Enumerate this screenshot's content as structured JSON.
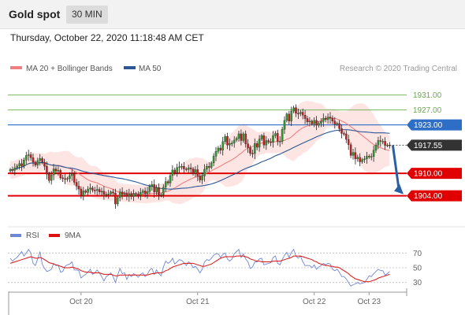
{
  "header": {
    "instrument": "Gold spot",
    "timeframe": "30 MIN"
  },
  "datetime": "Thursday, October 22, 2020 11:18:48 AM CET",
  "legend": {
    "ma20": {
      "label": "MA 20 + Bollinger Bands",
      "color": "#f08080"
    },
    "ma50": {
      "label": "MA 50",
      "color": "#2b5797"
    },
    "credit": "Research © 2020 Trading Central"
  },
  "rsi_legend": {
    "rsi": {
      "label": "RSI",
      "color": "#6f86d6"
    },
    "ma": {
      "label": "9MA",
      "color": "#d11"
    }
  },
  "colors": {
    "candle_up": "#2e9a2e",
    "candle_down": "#c61d1d",
    "green_level": "#7ab55c",
    "blue_level": "#2f6ec7",
    "red_level": "#e00000",
    "last_price": "#333333",
    "arrow": "#2b5fa3"
  },
  "chart_data": [
    {
      "type": "candlestick",
      "price_range": [
        1898,
        1936
      ],
      "levels": [
        {
          "value": "1931.00",
          "kind": "green"
        },
        {
          "value": "1927.00",
          "kind": "green"
        },
        {
          "value": "1923.00",
          "kind": "blue"
        },
        {
          "value": "1917.55",
          "kind": "last"
        },
        {
          "value": "1910.00",
          "kind": "red"
        },
        {
          "value": "1904.00",
          "kind": "red"
        }
      ],
      "x_labels": [
        "Oct 20",
        "Oct 21",
        "Oct 22",
        "Oct 23"
      ],
      "close": [
        1911.0,
        1910.8,
        1911.5,
        1912.0,
        1912.6,
        1912.0,
        1913.6,
        1914.8,
        1915.0,
        1914.2,
        1913.0,
        1912.2,
        1913.4,
        1914.0,
        1913.0,
        1911.9,
        1909.8,
        1908.1,
        1909.6,
        1911.2,
        1910.6,
        1910.8,
        1908.8,
        1908.6,
        1908.4,
        1908.6,
        1909.4,
        1909.9,
        1907.6,
        1906.6,
        1905.8,
        1904.0,
        1905.3,
        1904.9,
        1905.8,
        1906.1,
        1905.5,
        1905.4,
        1905.7,
        1905.0,
        1905.2,
        1904.4,
        1904.4,
        1904.5,
        1905.0,
        1904.7,
        1901.8,
        1903.5,
        1905.0,
        1904.4,
        1904.6,
        1903.9,
        1904.5,
        1903.8,
        1904.6,
        1904.4,
        1904.1,
        1904.9,
        1905.3,
        1904.6,
        1905.1,
        1906.5,
        1907.0,
        1905.0,
        1906.2,
        1904.1,
        1904.3,
        1906.3,
        1907.8,
        1907.4,
        1909.4,
        1910.9,
        1910.2,
        1911.6,
        1911.8,
        1911.9,
        1911.2,
        1911.0,
        1911.5,
        1911.2,
        1910.0,
        1911.0,
        1909.3,
        1908.2,
        1909.3,
        1911.1,
        1911.9,
        1911.6,
        1912.8,
        1914.6,
        1915.9,
        1916.8,
        1916.2,
        1918.5,
        1919.9,
        1917.6,
        1918.0,
        1918.1,
        1918.9,
        1919.4,
        1920.6,
        1918.8,
        1920.6,
        1917.9,
        1916.9,
        1915.4,
        1915.3,
        1918.0,
        1917.0,
        1919.2,
        1920.1,
        1917.6,
        1918.8,
        1918.5,
        1918.3,
        1920.1,
        1920.7,
        1918.6,
        1918.6,
        1921.8,
        1924.2,
        1925.9,
        1924.0,
        1926.7,
        1927.6,
        1926.1,
        1926.0,
        1926.4,
        1925.6,
        1924.7,
        1923.8,
        1924.0,
        1923.3,
        1924.2,
        1922.9,
        1923.4,
        1923.9,
        1924.8,
        1924.4,
        1925.1,
        1924.8,
        1924.0,
        1923.2,
        1923.4,
        1922.0,
        1920.7,
        1920.6,
        1919.1,
        1917.7,
        1914.8,
        1915.6,
        1913.9,
        1914.3,
        1913.1,
        1913.7,
        1913.9,
        1914.6,
        1914.5,
        1914.5,
        1916.2,
        1917.6,
        1918.8,
        1918.6,
        1918.6,
        1917.5,
        1917.6,
        1917.55
      ]
    },
    {
      "type": "line",
      "name": "RSI",
      "y_ticks": [
        70,
        50,
        30
      ],
      "rsi": [
        63,
        59,
        62,
        64,
        68,
        72,
        66,
        70,
        75,
        70,
        56,
        53,
        62,
        72,
        55,
        49,
        45,
        46,
        48,
        56,
        53,
        54,
        44,
        45,
        52,
        54,
        55,
        58,
        47,
        47,
        46,
        36,
        39,
        41,
        44,
        48,
        41,
        43,
        47,
        43,
        38,
        32,
        38,
        40,
        43,
        38,
        30,
        40,
        49,
        42,
        43,
        34,
        41,
        38,
        42,
        40,
        37,
        41,
        43,
        38,
        41,
        47,
        49,
        41,
        47,
        42,
        39,
        51,
        59,
        56,
        58,
        63,
        55,
        58,
        61,
        60,
        57,
        53,
        58,
        56,
        50,
        52,
        48,
        43,
        48,
        58,
        61,
        60,
        63,
        67,
        69,
        69,
        64,
        68,
        70,
        62,
        59,
        62,
        69,
        72,
        75,
        64,
        69,
        62,
        58,
        49,
        51,
        58,
        58,
        62,
        63,
        54,
        55,
        56,
        57,
        64,
        66,
        56,
        54,
        61,
        67,
        71,
        64,
        71,
        75,
        66,
        63,
        66,
        58,
        53,
        53,
        53,
        50,
        54,
        48,
        51,
        53,
        56,
        54,
        56,
        55,
        48,
        46,
        48,
        44,
        38,
        38,
        35,
        30,
        25,
        27,
        28,
        30,
        28,
        29,
        30,
        34,
        39,
        38,
        42,
        45,
        48,
        46,
        46,
        40,
        42,
        45
      ],
      "ma": [
        56,
        57,
        58,
        59,
        60,
        61,
        62,
        63,
        64,
        65,
        64,
        63,
        63,
        64,
        63,
        61,
        59,
        57,
        56,
        55,
        54,
        53,
        52,
        51,
        50,
        50,
        50,
        51,
        50,
        49,
        48,
        46,
        45,
        44,
        44,
        44,
        43,
        43,
        43,
        43,
        42,
        41,
        41,
        41,
        41,
        40,
        39,
        39,
        40,
        40,
        40,
        40,
        40,
        40,
        40,
        40,
        40,
        40,
        40,
        40,
        40,
        41,
        42,
        42,
        43,
        43,
        43,
        44,
        46,
        47,
        49,
        51,
        52,
        53,
        54,
        55,
        56,
        56,
        56,
        56,
        56,
        55,
        54,
        53,
        52,
        52,
        53,
        54,
        55,
        57,
        59,
        61,
        63,
        64,
        65,
        65,
        65,
        65,
        65,
        66,
        66,
        66,
        66,
        65,
        64,
        62,
        61,
        60,
        59,
        59,
        58,
        58,
        58,
        58,
        58,
        59,
        59,
        59,
        59,
        60,
        61,
        62,
        63,
        64,
        66,
        66,
        66,
        66,
        65,
        64,
        63,
        62,
        61,
        59,
        58,
        56,
        55,
        54,
        53,
        53,
        52,
        52,
        51,
        51,
        50,
        48,
        46,
        44,
        42,
        39,
        37,
        35,
        34,
        33,
        32,
        31,
        31,
        31,
        32,
        33,
        34,
        36,
        37,
        38,
        39,
        40,
        41
      ]
    }
  ]
}
